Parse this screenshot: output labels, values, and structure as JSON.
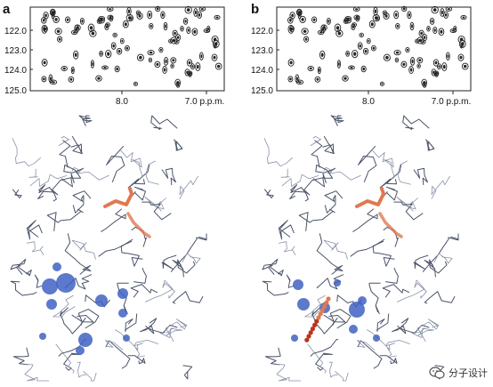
{
  "figure": {
    "panels": [
      {
        "letter": "a",
        "nmr": {
          "y_ticks": [
            "122.0",
            "123.0",
            "124.0",
            "125.0"
          ],
          "x_ticks": [
            "8.0",
            "7.0 p.p.m."
          ]
        }
      },
      {
        "letter": "b",
        "nmr": {
          "y_ticks": [
            "122.0",
            "123.0",
            "124.0",
            "125.0"
          ],
          "x_ticks": [
            "8.0",
            "7.0 p.p.m."
          ]
        }
      }
    ],
    "colors": {
      "backbone": "#4a5368",
      "backbone_light": "#8a92a8",
      "highlight_orange": "#e07850",
      "sphere_blue": "#3f62c2",
      "sphere_dark_red": "#b8351c",
      "peak": "#222222"
    }
  },
  "watermark": {
    "text": "分子设计",
    "icon": "wechat-logo-icon"
  }
}
